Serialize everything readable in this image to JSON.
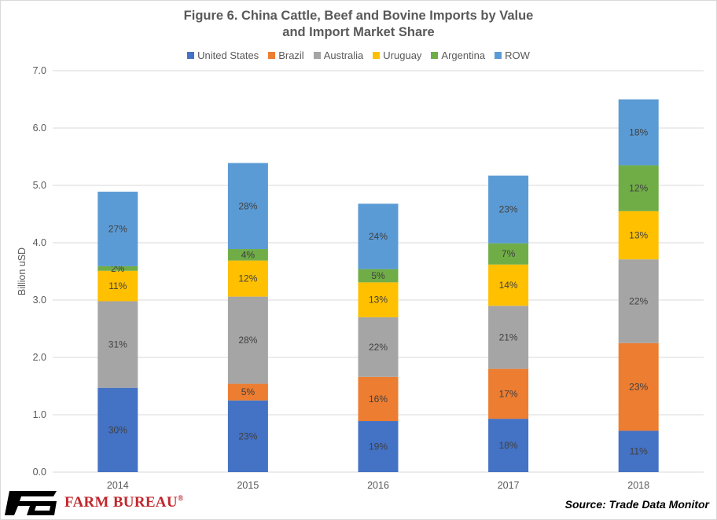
{
  "chart_data": {
    "type": "bar",
    "stacked": true,
    "title_lines": [
      "Figure 6. China Cattle, Beef and Bovine Imports by Value",
      "and Import Market Share"
    ],
    "ylabel": "Billion uSD",
    "xlabel": "",
    "ylim": [
      0,
      7
    ],
    "yticks": [
      "0.0",
      "1.0",
      "2.0",
      "3.0",
      "4.0",
      "5.0",
      "6.0",
      "7.0"
    ],
    "legend_position": "top",
    "grid": true,
    "categories": [
      "2014",
      "2015",
      "2016",
      "2017",
      "2018"
    ],
    "series": [
      {
        "name": "United States",
        "color": "#4472c4",
        "values": [
          1.47,
          1.25,
          0.89,
          0.93,
          0.72
        ],
        "labels": [
          "30%",
          "23%",
          "19%",
          "18%",
          "11%"
        ]
      },
      {
        "name": "Brazil",
        "color": "#ed7d31",
        "values": [
          0.0,
          0.29,
          0.77,
          0.87,
          1.53
        ],
        "labels": [
          "",
          "5%",
          "16%",
          "17%",
          "23%"
        ]
      },
      {
        "name": "Australia",
        "color": "#a5a5a5",
        "values": [
          1.51,
          1.52,
          1.04,
          1.1,
          1.46
        ],
        "labels": [
          "31%",
          "28%",
          "22%",
          "21%",
          "22%"
        ]
      },
      {
        "name": "Uruguay",
        "color": "#ffc000",
        "values": [
          0.53,
          0.63,
          0.61,
          0.72,
          0.84
        ],
        "labels": [
          "11%",
          "12%",
          "13%",
          "14%",
          "13%"
        ]
      },
      {
        "name": "Argentina",
        "color": "#70ad47",
        "values": [
          0.08,
          0.2,
          0.23,
          0.37,
          0.8
        ],
        "labels": [
          "2%",
          "4%",
          "5%",
          "7%",
          "12%"
        ]
      },
      {
        "name": "ROW",
        "color": "#5b9bd5",
        "values": [
          1.3,
          1.5,
          1.14,
          1.18,
          1.15
        ],
        "labels": [
          "27%",
          "28%",
          "24%",
          "23%",
          "18%"
        ]
      }
    ]
  },
  "footer": {
    "logo_text": "FARM BUREAU",
    "logo_mark": "®",
    "source": "Source: Trade Data Monitor"
  },
  "colors": {
    "brand_red": "#c0272d",
    "grid": "#d9d9d9",
    "text": "#595959"
  }
}
